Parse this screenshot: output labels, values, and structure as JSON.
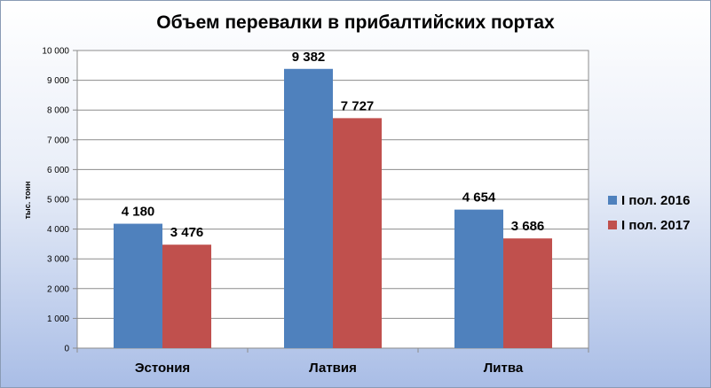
{
  "chart_data": {
    "type": "bar",
    "title": "Объем перевалки в прибалтийских портах",
    "xlabel": "",
    "ylabel": "тыс. тонн",
    "categories": [
      "Эстония",
      "Латвия",
      "Литва"
    ],
    "series": [
      {
        "name": "I пол. 2016",
        "color": "#4f81bd",
        "values": [
          4180,
          9382,
          4654
        ],
        "labels": [
          "4 180",
          "9 382",
          "4 654"
        ]
      },
      {
        "name": "I пол. 2017",
        "color": "#c0504d",
        "values": [
          3476,
          7727,
          3686
        ],
        "labels": [
          "3 476",
          "7 727",
          "3 686"
        ]
      }
    ],
    "ylim": [
      0,
      10000
    ],
    "yticks": [
      0,
      1000,
      2000,
      3000,
      4000,
      5000,
      6000,
      7000,
      8000,
      9000,
      10000
    ],
    "ytick_labels": [
      "0",
      "1 000",
      "2 000",
      "3 000",
      "4 000",
      "5 000",
      "6 000",
      "7 000",
      "8 000",
      "9 000",
      "10 000"
    ],
    "grid": true,
    "legend_position": "right"
  }
}
